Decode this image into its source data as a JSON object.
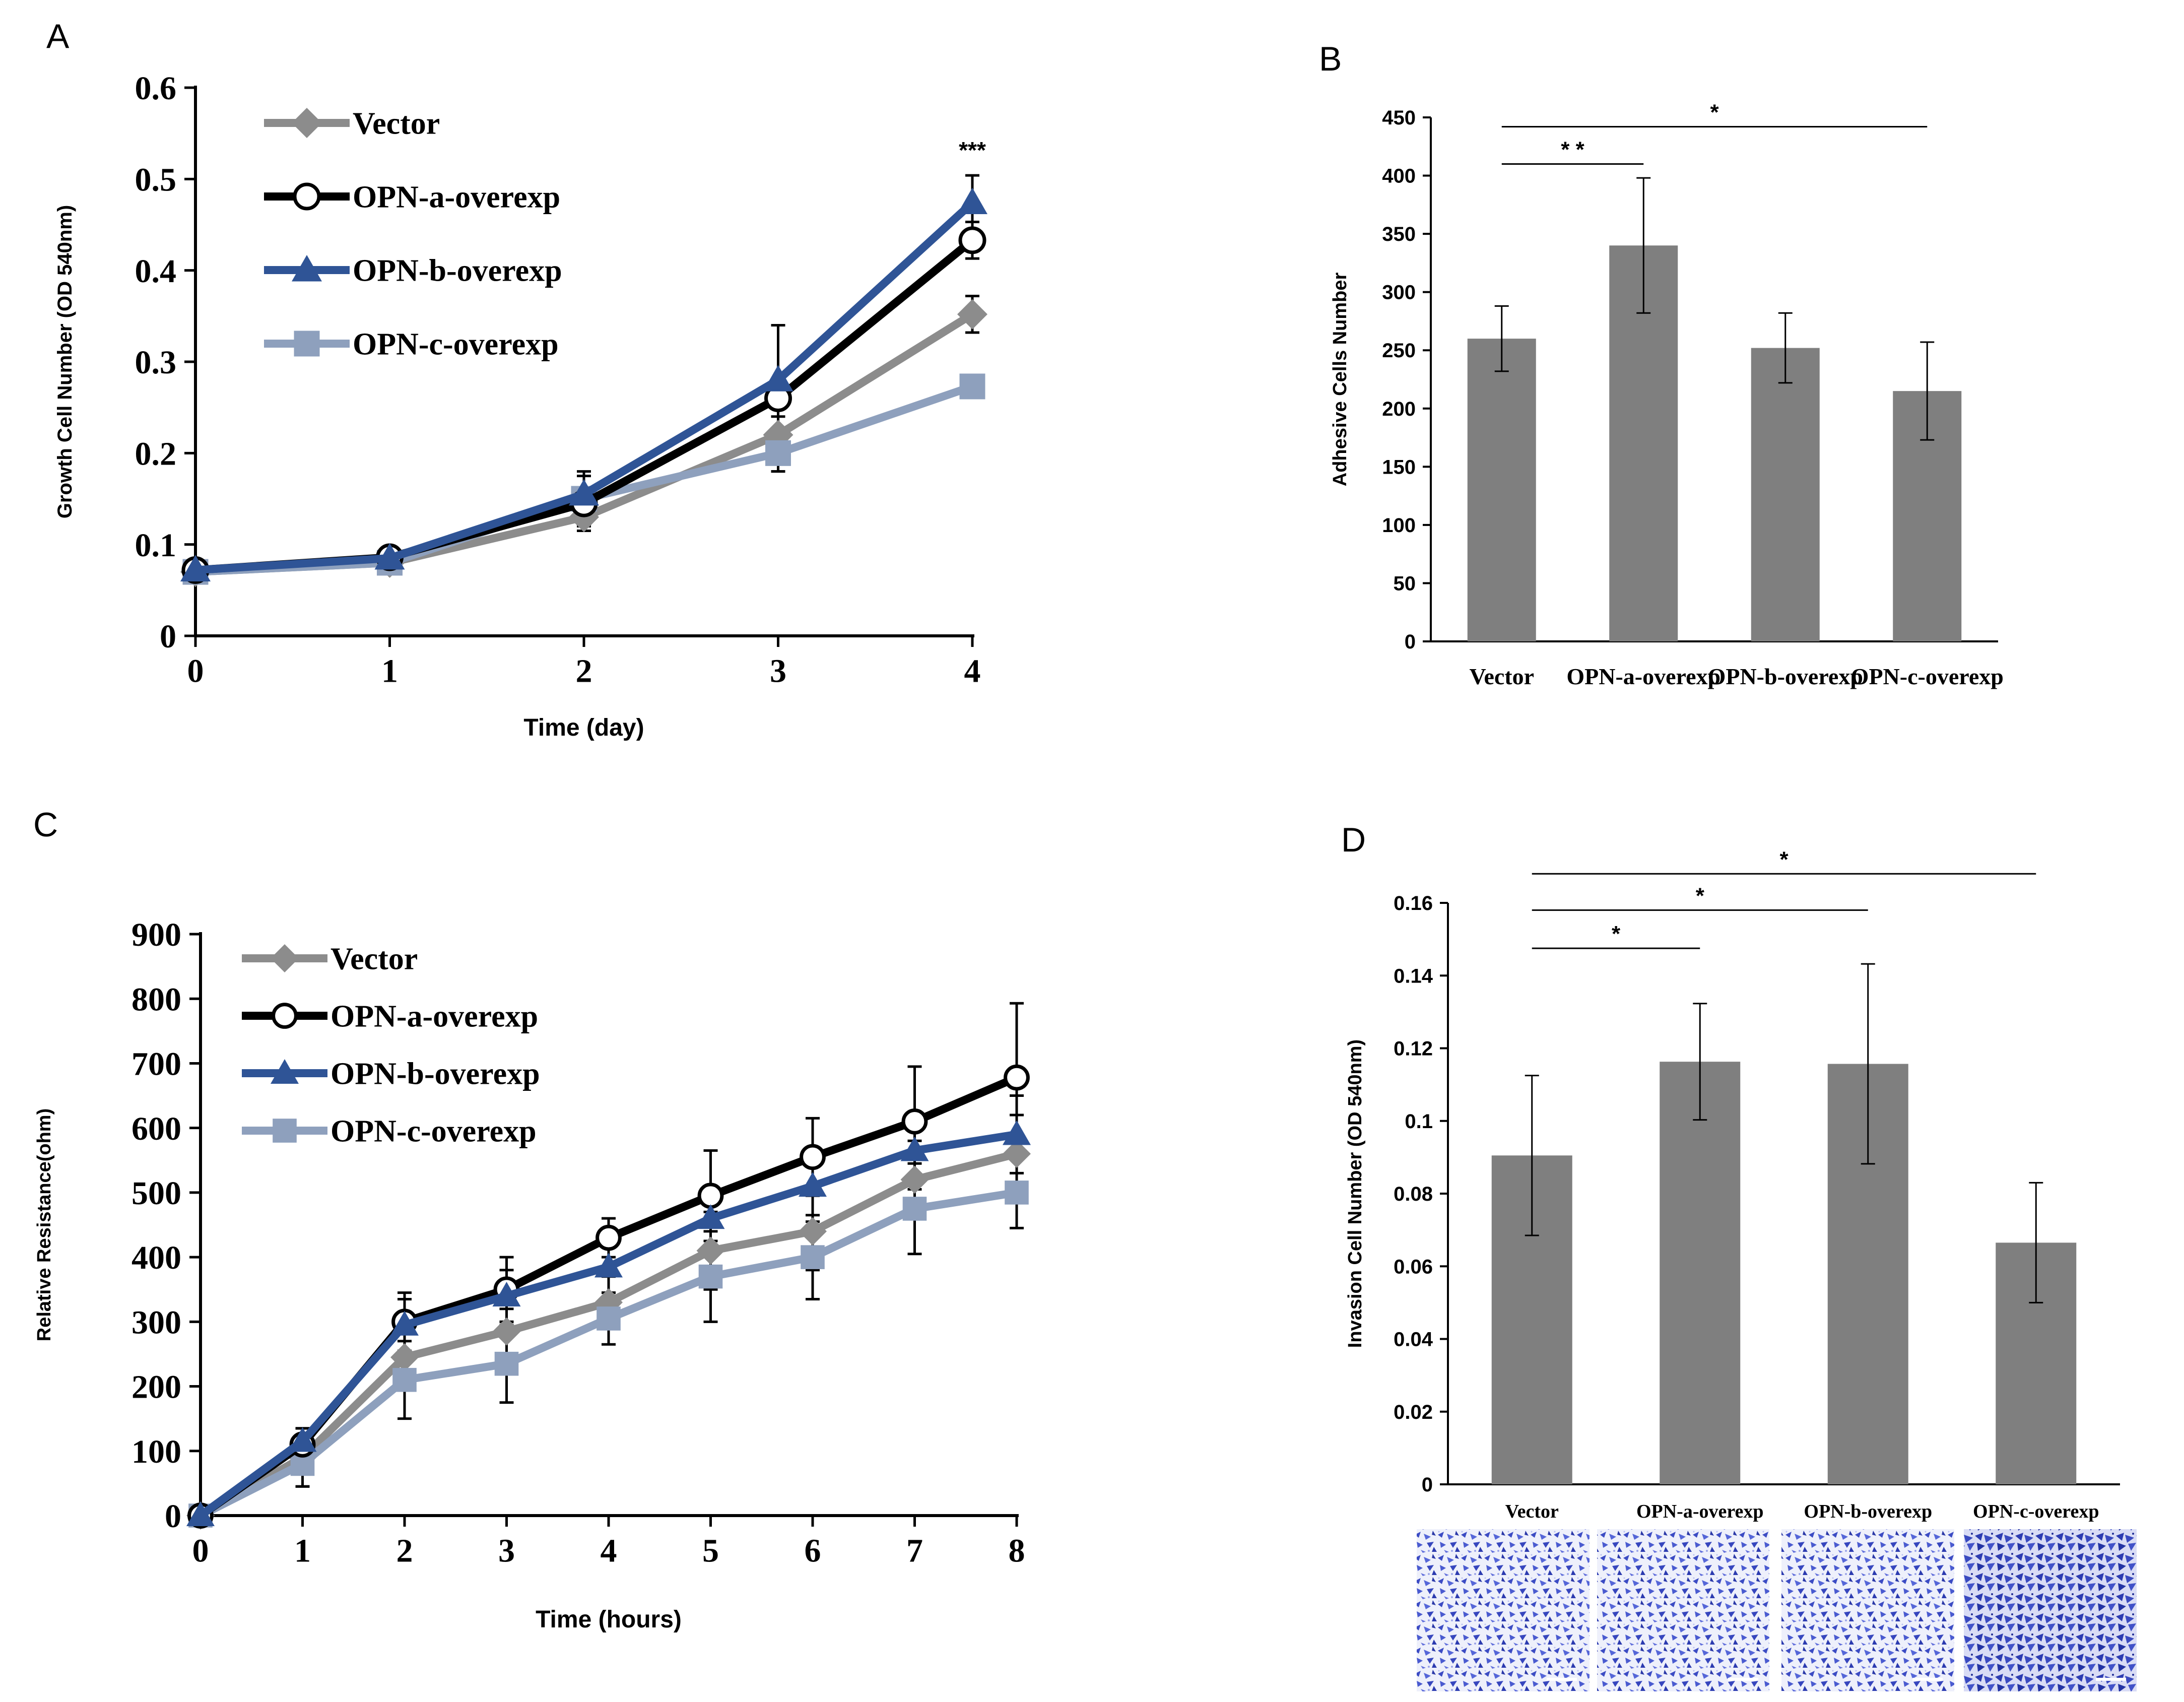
{
  "colors": {
    "vector": "#8c8c8c",
    "opn_a": "#000000",
    "opn_b": "#2f5496",
    "opn_c": "#8ea0bd",
    "bar": "#7f7f7f",
    "axis": "#000000"
  },
  "chart_data": [
    {
      "panel": "A",
      "type": "line",
      "xlabel": "Time (day)",
      "ylabel": "Growth Cell Number (OD 540nm)",
      "x": [
        0,
        1,
        2,
        3,
        4
      ],
      "xticks": [
        "0",
        "1",
        "2",
        "3",
        "4"
      ],
      "yticks": [
        "0",
        "0.1",
        "0.2",
        "0.3",
        "0.4",
        "0.5",
        "0.6"
      ],
      "ylim": [
        0,
        0.6
      ],
      "series": [
        {
          "name": "Vector",
          "values": [
            0.07,
            0.08,
            0.13,
            0.22,
            0.352
          ],
          "err": [
            0,
            0,
            0.015,
            0.04,
            0.02
          ]
        },
        {
          "name": "OPN-a-overexp",
          "values": [
            0.072,
            0.086,
            0.145,
            0.26,
            0.433
          ],
          "err": [
            0,
            0,
            0,
            0.02,
            0.02
          ]
        },
        {
          "name": "OPN-b-overexp",
          "values": [
            0.072,
            0.085,
            0.155,
            0.28,
            0.474
          ],
          "err": [
            0,
            0,
            0.02,
            0.06,
            0.03
          ]
        },
        {
          "name": "OPN-c-overexp",
          "values": [
            0.07,
            0.08,
            0.15,
            0.2,
            0.273
          ],
          "err": [
            0,
            0,
            0.03,
            0.02,
            0.01
          ]
        }
      ],
      "annotation": "***",
      "annotation_x": 4
    },
    {
      "panel": "B",
      "type": "bar",
      "ylabel": "Adhesive Cells Number",
      "categories": [
        "Vector",
        "OPN-a-overexp",
        "OPN-b-overexp",
        "OPN-c-overexp"
      ],
      "values": [
        260,
        340,
        252,
        215
      ],
      "err": [
        28,
        58,
        30,
        42
      ],
      "ylim": [
        0,
        450
      ],
      "yticks": [
        "0",
        "50",
        "100",
        "150",
        "200",
        "250",
        "300",
        "350",
        "400",
        "450"
      ],
      "significance": [
        {
          "from": 0,
          "to": 1,
          "label": "* *",
          "level": 410
        },
        {
          "from": 0,
          "to": 3,
          "label": "*",
          "level": 442
        }
      ]
    },
    {
      "panel": "C",
      "type": "line",
      "xlabel": "Time (hours)",
      "ylabel": "Relative Resistance(ohm)",
      "x": [
        0,
        1,
        2,
        3,
        4,
        5,
        6,
        7,
        8
      ],
      "xticks": [
        "0",
        "1",
        "2",
        "3",
        "4",
        "5",
        "6",
        "7",
        "8"
      ],
      "yticks": [
        "0",
        "100",
        "200",
        "300",
        "400",
        "500",
        "600",
        "700",
        "800",
        "900"
      ],
      "ylim": [
        0,
        900
      ],
      "series": [
        {
          "name": "Vector",
          "values": [
            0,
            90,
            245,
            285,
            330,
            410,
            440,
            520,
            560
          ],
          "err": [
            0,
            45,
            40,
            35,
            40,
            60,
            60,
            60,
            60
          ]
        },
        {
          "name": "OPN-a-overexp",
          "values": [
            0,
            110,
            300,
            350,
            430,
            495,
            555,
            610,
            678
          ],
          "err": [
            0,
            25,
            45,
            50,
            30,
            70,
            60,
            85,
            115
          ]
        },
        {
          "name": "OPN-b-overexp",
          "values": [
            0,
            115,
            295,
            340,
            385,
            460,
            510,
            565,
            590
          ],
          "err": [
            0,
            20,
            40,
            40,
            40,
            50,
            55,
            60,
            60
          ]
        },
        {
          "name": "OPN-c-overexp",
          "values": [
            0,
            80,
            210,
            235,
            305,
            370,
            400,
            475,
            500
          ],
          "err": [
            0,
            35,
            60,
            60,
            40,
            70,
            65,
            70,
            55
          ]
        }
      ]
    },
    {
      "panel": "D",
      "type": "bar",
      "ylabel": "Invasion Cell Number (OD 540nm)",
      "categories": [
        "Vector",
        "OPN-a-overexp",
        "OPN-b-overexp",
        "OPN-c-overexp"
      ],
      "values": [
        0.0905,
        0.1163,
        0.1157,
        0.0665
      ],
      "err": [
        0.022,
        0.016,
        0.0275,
        0.0165
      ],
      "ylim": [
        0,
        0.16
      ],
      "yticks": [
        "0",
        "0.02",
        "0.04",
        "0.06",
        "0.08",
        "0.1",
        "0.12",
        "0.14",
        "0.16"
      ],
      "significance": [
        {
          "from": 0,
          "to": 1,
          "label": "*",
          "level": 0.1475
        },
        {
          "from": 0,
          "to": 2,
          "label": "*",
          "level": 0.158
        },
        {
          "from": 0,
          "to": 3,
          "label": "*",
          "level": 0.168
        }
      ]
    }
  ],
  "panels": {
    "A": "A",
    "B": "B",
    "C": "C",
    "D": "D"
  }
}
